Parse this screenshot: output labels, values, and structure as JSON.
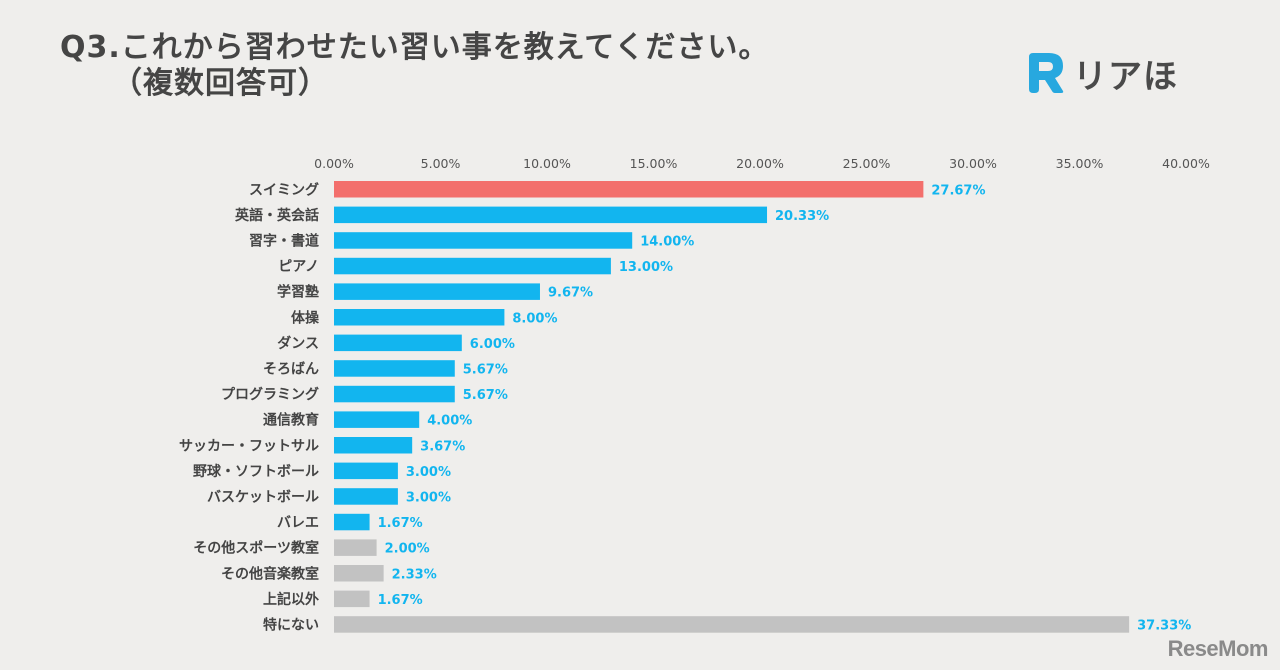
{
  "title": {
    "line1": "Q3.これから習わせたい習い事を教えてください。",
    "line2": "（複数回答可）"
  },
  "logo": {
    "text": "リアほ",
    "colors": {
      "mark": "#27a8df"
    }
  },
  "watermark": "ReseMom",
  "chart_data": {
    "type": "bar",
    "orientation": "horizontal",
    "title": "Q3.これから習わせたい習い事を教えてください。（複数回答可）",
    "xlim": [
      0,
      40
    ],
    "ticks": [
      "0.00%",
      "5.00%",
      "10.00%",
      "15.00%",
      "20.00%",
      "25.00%",
      "30.00%",
      "35.00%",
      "40.00%"
    ],
    "tick_values": [
      0,
      5,
      10,
      15,
      20,
      25,
      30,
      35,
      40
    ],
    "categories": [
      "スイミング",
      "英語・英会話",
      "習字・書道",
      "ピアノ",
      "学習塾",
      "体操",
      "ダンス",
      "そろばん",
      "プログラミング",
      "通信教育",
      "サッカー・フットサル",
      "野球・ソフトボール",
      "バスケットボール",
      "バレエ",
      "その他スポーツ教室",
      "その他音楽教室",
      "上記以外",
      "特にない"
    ],
    "values": [
      27.67,
      20.33,
      14.0,
      13.0,
      9.67,
      8.0,
      6.0,
      5.67,
      5.67,
      4.0,
      3.67,
      3.0,
      3.0,
      1.67,
      2.0,
      2.33,
      1.67,
      37.33
    ],
    "labels": [
      "27.67%",
      "20.33%",
      "14.00%",
      "13.00%",
      "9.67%",
      "8.00%",
      "6.00%",
      "5.67%",
      "5.67%",
      "4.00%",
      "3.67%",
      "3.00%",
      "3.00%",
      "1.67%",
      "2.00%",
      "2.33%",
      "1.67%",
      "37.33%"
    ],
    "bar_colors": [
      "#f36f6c",
      "#12b5ef",
      "#12b5ef",
      "#12b5ef",
      "#12b5ef",
      "#12b5ef",
      "#12b5ef",
      "#12b5ef",
      "#12b5ef",
      "#12b5ef",
      "#12b5ef",
      "#12b5ef",
      "#12b5ef",
      "#12b5ef",
      "#c2c2c2",
      "#c2c2c2",
      "#c2c2c2",
      "#c2c2c2"
    ],
    "value_label_colors": [
      "#12b5ef",
      "#12b5ef",
      "#12b5ef",
      "#12b5ef",
      "#12b5ef",
      "#12b5ef",
      "#12b5ef",
      "#12b5ef",
      "#12b5ef",
      "#12b5ef",
      "#12b5ef",
      "#12b5ef",
      "#12b5ef",
      "#12b5ef",
      "#12b5ef",
      "#12b5ef",
      "#12b5ef",
      "#12b5ef"
    ],
    "grid": false,
    "legend": "none"
  }
}
